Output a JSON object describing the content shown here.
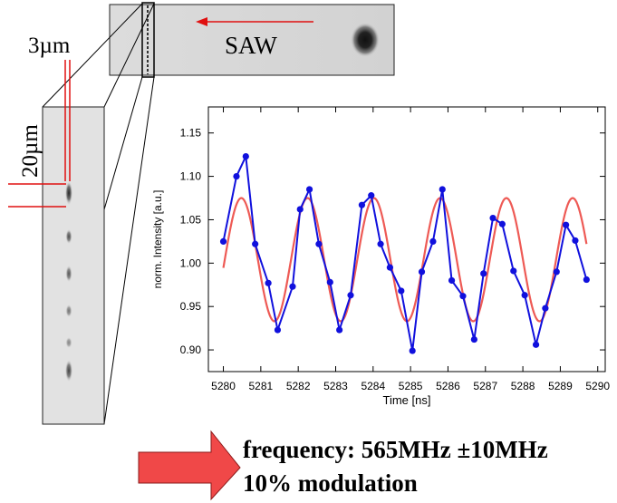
{
  "colors": {
    "measured": "#1010dd",
    "fit": "#ee5a55",
    "marker": "#ee1111",
    "arrow": "#f04848"
  },
  "labels": {
    "saw": "SAW",
    "width_scale": "3µm",
    "height_scale": "20µm"
  },
  "conclusion": {
    "frequency": "frequency: 565MHz ±10MHz",
    "modulation": "10% modulation"
  },
  "chart_data": {
    "type": "line",
    "xlabel": "Time [ns]",
    "ylabel": "norm. Intensity [a.u.]",
    "xlim": [
      5279.6,
      5290.2
    ],
    "ylim": [
      0.875,
      1.18
    ],
    "xticks": [
      5280,
      5281,
      5282,
      5283,
      5284,
      5285,
      5286,
      5287,
      5288,
      5289,
      5290
    ],
    "yticks": [
      0.9,
      0.95,
      1.0,
      1.05,
      1.1,
      1.15
    ],
    "grid": false,
    "series": [
      {
        "style": "measured",
        "x": [
          5280.0,
          5280.35,
          5280.6,
          5280.85,
          5281.2,
          5281.45,
          5281.85,
          5282.05,
          5282.3,
          5282.55,
          5282.85,
          5283.1,
          5283.4,
          5283.7,
          5283.95,
          5284.2,
          5284.45,
          5284.75,
          5285.05,
          5285.3,
          5285.6,
          5285.85,
          5286.1,
          5286.4,
          5286.7,
          5286.95,
          5287.2,
          5287.45,
          5287.75,
          5288.05,
          5288.35,
          5288.6,
          5288.9,
          5289.15,
          5289.4,
          5289.7
        ],
        "y": [
          1.025,
          1.1,
          1.123,
          1.022,
          0.977,
          0.923,
          0.973,
          1.062,
          1.085,
          1.022,
          0.978,
          0.923,
          0.963,
          1.067,
          1.078,
          1.022,
          0.995,
          0.968,
          0.899,
          0.99,
          1.025,
          1.085,
          0.98,
          0.962,
          0.912,
          0.988,
          1.052,
          1.045,
          0.991,
          0.963,
          0.906,
          0.948,
          0.99,
          1.044,
          1.026,
          0.981
        ]
      },
      {
        "style": "fit",
        "function": "sine",
        "offset": 1.004,
        "amplitude": 0.071,
        "period_ns": 1.77,
        "peak_at_ns": 5282.25,
        "x_range": [
          5280.0,
          5289.7
        ]
      }
    ]
  }
}
